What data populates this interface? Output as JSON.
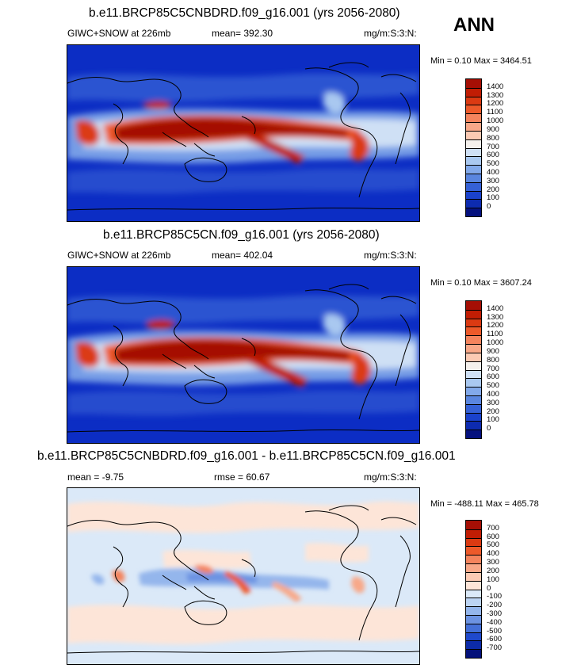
{
  "season": "ANN",
  "panels": [
    {
      "title": "b.e11.BRCP85C5CNBDRD.f09_g16.001 (yrs 2056-2080)",
      "left_label": "GIWC+SNOW at 226mb",
      "mid_label": "mean= 392.30",
      "units": "mg/m:S:3:N:",
      "minmax": "Min =   0.10 Max = 3464.51",
      "legend_levels": [
        "1400",
        "1300",
        "1200",
        "1100",
        "1000",
        "900",
        "800",
        "700",
        "600",
        "500",
        "400",
        "300",
        "200",
        "100",
        "0"
      ],
      "legend_colors": [
        "#a50f05",
        "#c11d04",
        "#db3a12",
        "#ed5a2a",
        "#f4845d",
        "#f8a888",
        "#fbcab3",
        "#f4f0ec",
        "#cfe0f5",
        "#a9c8f0",
        "#82a9ea",
        "#5a86df",
        "#3561d6",
        "#1a42cc",
        "#0d2bb0",
        "#05117e"
      ]
    },
    {
      "title": "b.e11.BRCP85C5CN.f09_g16.001 (yrs 2056-2080)",
      "left_label": "GIWC+SNOW at 226mb",
      "mid_label": "mean= 402.04",
      "units": "mg/m:S:3:N:",
      "minmax": "Min =   0.10 Max = 3607.24",
      "legend_levels": [
        "1400",
        "1300",
        "1200",
        "1100",
        "1000",
        "900",
        "800",
        "700",
        "600",
        "500",
        "400",
        "300",
        "200",
        "100",
        "0"
      ],
      "legend_colors": [
        "#a50f05",
        "#c11d04",
        "#db3a12",
        "#ed5a2a",
        "#f4845d",
        "#f8a888",
        "#fbcab3",
        "#f4f0ec",
        "#cfe0f5",
        "#a9c8f0",
        "#82a9ea",
        "#5a86df",
        "#3561d6",
        "#1a42cc",
        "#0d2bb0",
        "#05117e"
      ]
    },
    {
      "title": "b.e11.BRCP85C5CNBDRD.f09_g16.001 - b.e11.BRCP85C5CN.f09_g16.001",
      "left_label": "mean =  -9.75",
      "mid_label": "rmse =  60.67",
      "units": "mg/m:S:3:N:",
      "minmax": "Min = -488.11 Max = 465.78",
      "legend_levels": [
        "700",
        "600",
        "500",
        "400",
        "300",
        "200",
        "100",
        "0",
        "-100",
        "-200",
        "-300",
        "-400",
        "-500",
        "-600",
        "-700"
      ],
      "legend_colors": [
        "#a50f05",
        "#c11d04",
        "#db3a12",
        "#ed5a2a",
        "#f4845d",
        "#f8a888",
        "#fbcab3",
        "#fde5d8",
        "#dbe9f8",
        "#bcd4f3",
        "#94b6ec",
        "#6c93e2",
        "#4470d8",
        "#1f49cc",
        "#0c2ba8",
        "#04117a"
      ]
    }
  ],
  "colors": {
    "map_low": "#0c2dc4",
    "map_high": "#a50f05",
    "diff_bg_warm": "#fde5d8",
    "diff_bg_cool": "#dbe9f8"
  }
}
